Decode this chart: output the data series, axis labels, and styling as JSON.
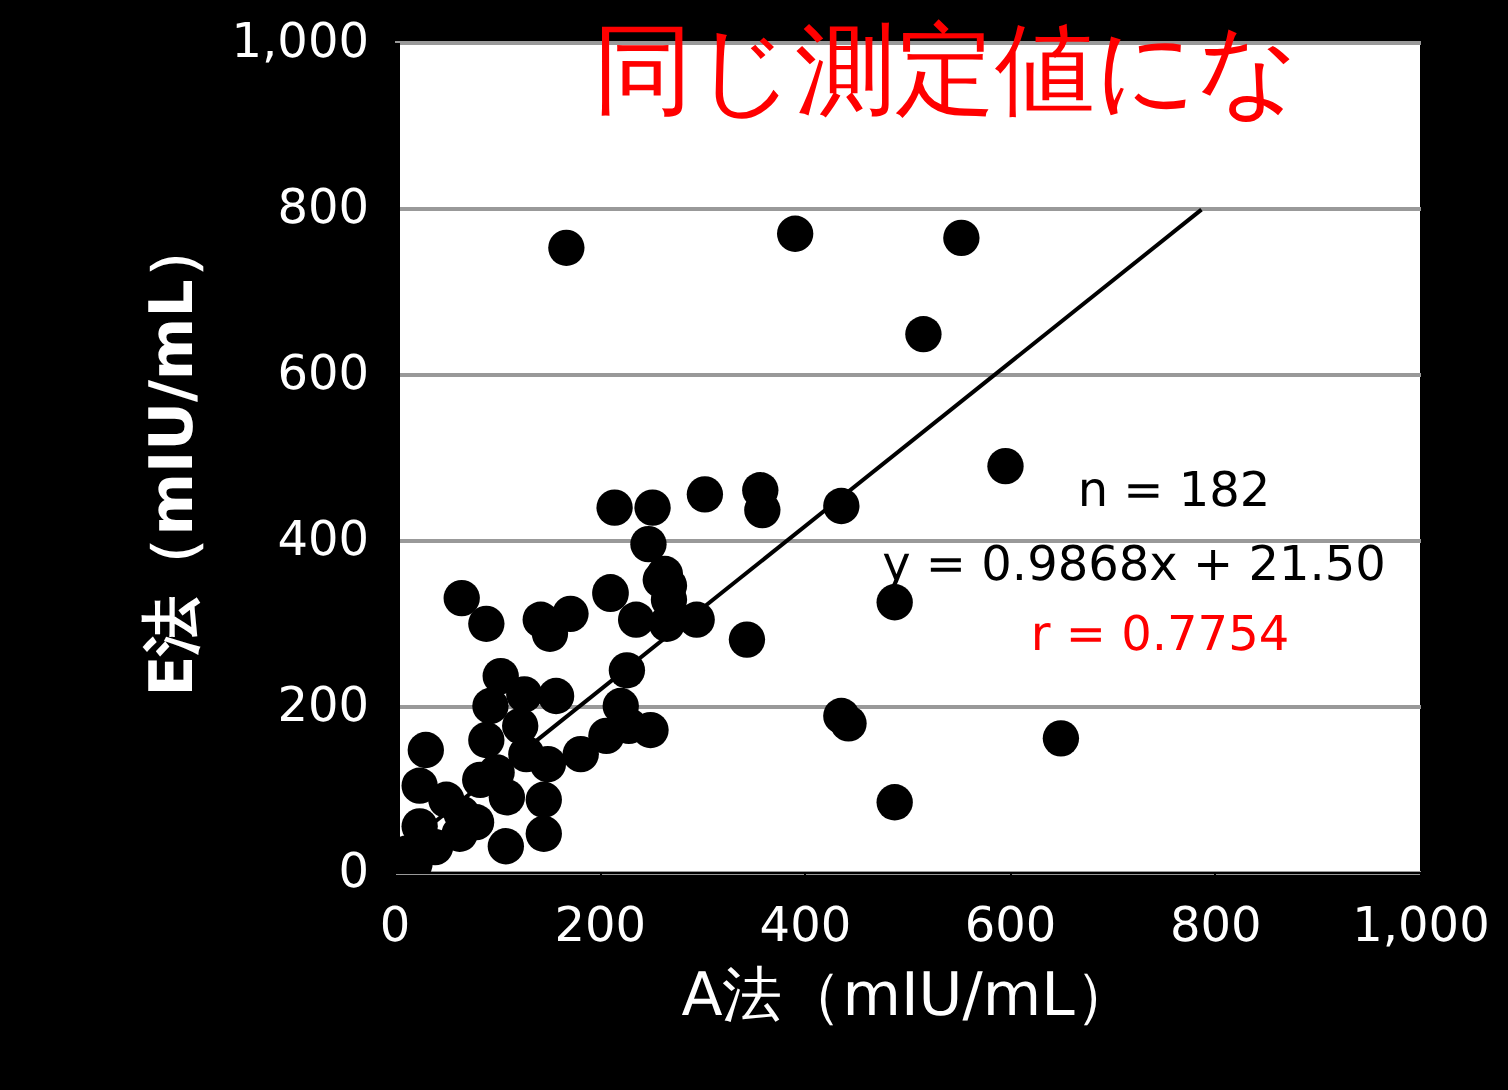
{
  "chart_data": {
    "type": "scatter",
    "title": "同じ測定値にな",
    "xlabel": "A法（mIU/mL）",
    "ylabel": "E法（mIU/mL）",
    "xlim": [
      0,
      1000
    ],
    "ylim": [
      0,
      1000
    ],
    "xticks": [
      0,
      200,
      400,
      600,
      800,
      {
        "value": 1000,
        "label": "1,000"
      }
    ],
    "yticks": [
      0,
      200,
      400,
      600,
      800,
      {
        "value": 1000,
        "label": "1,000"
      }
    ],
    "grid": "y",
    "marker": "circle",
    "annotations": [
      "n = 182",
      "y = 0.9868x + 21.50",
      "r = 0.7754"
    ],
    "series": [
      {
        "color": "#000000",
        "x": [
          168,
          391,
          553,
          516,
          596,
          436,
          488,
          650,
          488,
          436,
          443,
          344,
          303,
          357,
          359,
          252,
          215,
          248,
          260,
          268,
          211,
          295,
          236,
          227,
          229,
          250,
          182,
          66,
          90,
          143,
          152,
          172,
          211,
          264,
          268,
          266,
          221,
          207,
          104,
          94,
          127,
          158,
          123,
          129,
          90,
          31,
          25,
          51,
          84,
          146,
          146,
          109,
          64,
          25,
          12,
          66,
          100,
          80,
          40,
          20,
          110,
          150
        ],
        "values": [
          752,
          769,
          764,
          648,
          489,
          441,
          325,
          161,
          84,
          188,
          179,
          280,
          455,
          460,
          436,
          439,
          439,
          395,
          352,
          328,
          337,
          304,
          304,
          243,
          176,
          171,
          142,
          330,
          299,
          304,
          287,
          311,
          335,
          359,
          345,
          299,
          200,
          164,
          236,
          200,
          214,
          212,
          176,
          142,
          159,
          147,
          104,
          87,
          111,
          87,
          46,
          31,
          46,
          55,
          22,
          70,
          120,
          60,
          30,
          10,
          90,
          130
        ]
      },
      {
        "type": "line",
        "marker": "none",
        "color": "#000000",
        "x": [
          10,
          787
        ],
        "values": [
          31,
          798
        ]
      }
    ]
  }
}
